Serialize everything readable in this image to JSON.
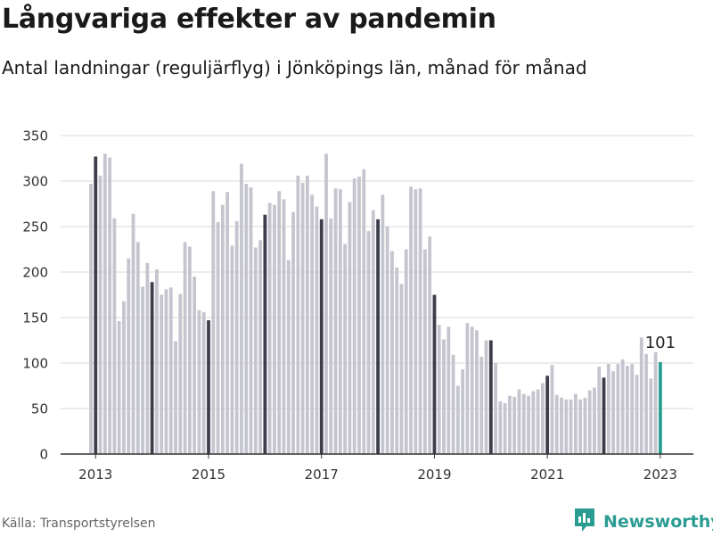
{
  "title": "Långvariga effekter av pandemin",
  "subtitle": "Antal landningar (reguljärflyg) i Jönköpings län, månad för månad",
  "source": "Källa: Transportstyrelsen",
  "brand": {
    "name": "Newsworthy",
    "icon": "newsworthy-logo-icon"
  },
  "colors": {
    "bar": "#c5c5cf",
    "january_bar": "#3d3d4b",
    "latest_bar": "#2a9d8f",
    "grid": "#d9d9d9",
    "axis": "#333333"
  },
  "chart_data": {
    "type": "bar",
    "title": "Långvariga effekter av pandemin",
    "subtitle": "Antal landningar (reguljärflyg) i Jönköpings län, månad för månad",
    "xlabel": "",
    "ylabel": "",
    "ylim": [
      0,
      350
    ],
    "yticks": [
      0,
      50,
      100,
      150,
      200,
      250,
      300,
      350
    ],
    "xticks": [
      "2013",
      "2015",
      "2017",
      "2019",
      "2021",
      "2023"
    ],
    "grid": true,
    "start": "2012-12",
    "highlight": "January bars dark; latest month highlighted",
    "annotation": {
      "month": "2023-01",
      "text": "101"
    },
    "values": [
      297,
      327,
      306,
      330,
      326,
      259,
      146,
      168,
      215,
      264,
      233,
      184,
      210,
      189,
      203,
      175,
      181,
      183,
      124,
      176,
      233,
      228,
      195,
      158,
      156,
      147,
      289,
      255,
      274,
      288,
      229,
      256,
      319,
      297,
      293,
      227,
      235,
      263,
      276,
      274,
      289,
      280,
      213,
      266,
      306,
      298,
      306,
      285,
      272,
      258,
      330,
      259,
      292,
      291,
      231,
      277,
      303,
      305,
      313,
      245,
      268,
      258,
      285,
      250,
      223,
      205,
      187,
      225,
      294,
      291,
      292,
      225,
      239,
      175,
      142,
      126,
      140,
      109,
      75,
      93,
      144,
      140,
      136,
      107,
      125,
      125,
      100,
      58,
      56,
      64,
      63,
      71,
      66,
      64,
      69,
      71,
      78,
      86,
      98,
      65,
      62,
      60,
      60,
      66,
      60,
      62,
      70,
      73,
      96,
      84,
      99,
      91,
      99,
      104,
      97,
      99,
      87,
      128,
      110,
      83,
      112,
      101
    ]
  }
}
